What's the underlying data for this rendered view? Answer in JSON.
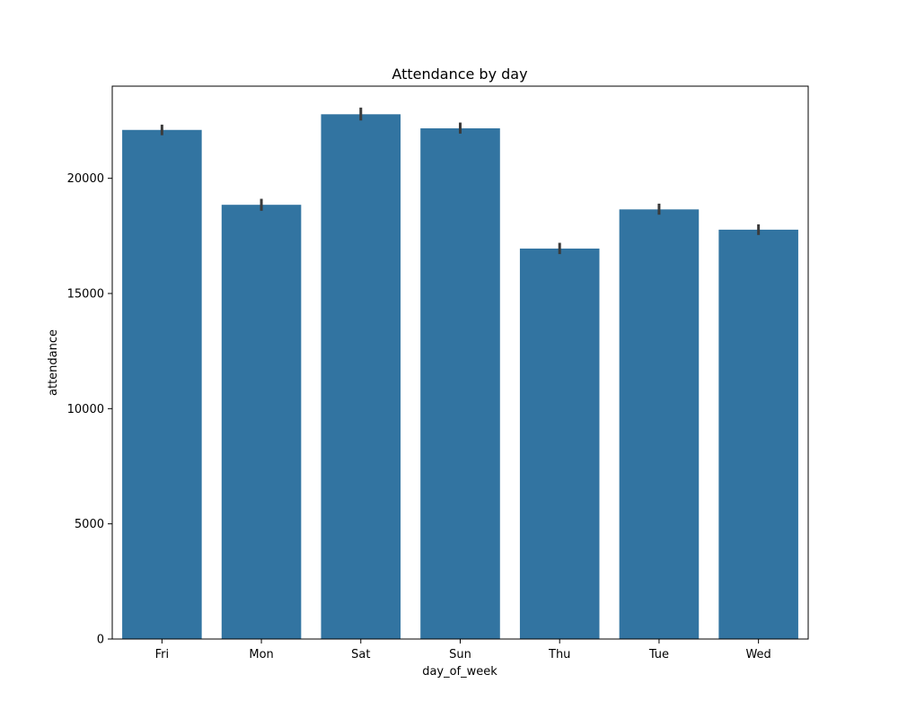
{
  "chart_data": {
    "type": "bar",
    "title": "Attendance by day",
    "xlabel": "day_of_week",
    "ylabel": "attendance",
    "categories": [
      "Fri",
      "Mon",
      "Sat",
      "Sun",
      "Thu",
      "Tue",
      "Wed"
    ],
    "values": [
      22100,
      18850,
      22780,
      22170,
      16950,
      18650,
      17770
    ],
    "error_low": [
      21870,
      18590,
      22510,
      21940,
      16710,
      18420,
      17540
    ],
    "error_high": [
      22330,
      19110,
      23070,
      22420,
      17200,
      18900,
      18000
    ],
    "ylim": [
      0,
      24000
    ],
    "yticks": [
      0,
      5000,
      10000,
      15000,
      20000
    ],
    "grid": false,
    "bar_color": "#3274a1",
    "error_color": "#3b3b3b"
  }
}
